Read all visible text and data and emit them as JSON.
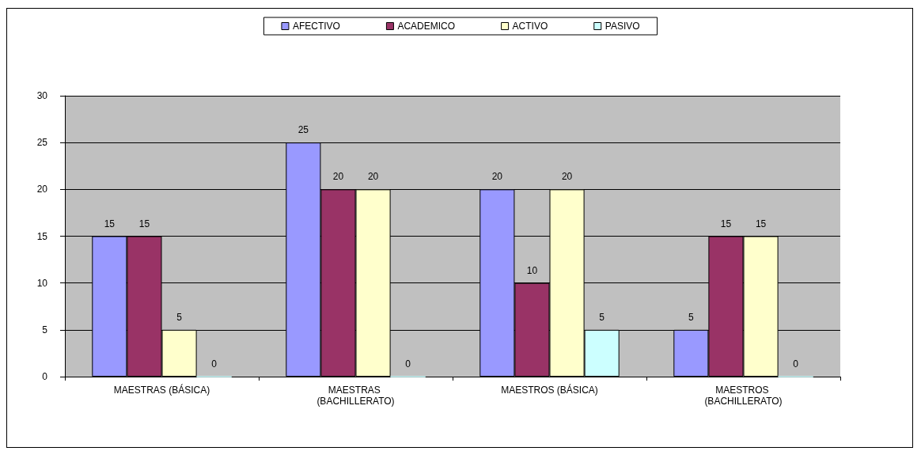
{
  "chart_data": {
    "type": "bar",
    "categories": [
      "MAESTRAS (BÁSICA)",
      "MAESTRAS (BACHILLERATO)",
      "MAESTROS (BÁSICA)",
      "MAESTROS (BACHILLERATO)"
    ],
    "series": [
      {
        "name": "AFECTIVO",
        "color": "#9999ff",
        "values": [
          15,
          25,
          20,
          5
        ]
      },
      {
        "name": "ACADEMICO",
        "color": "#993366",
        "values": [
          15,
          20,
          10,
          15
        ]
      },
      {
        "name": "ACTIVO",
        "color": "#ffffcc",
        "values": [
          5,
          20,
          20,
          15
        ]
      },
      {
        "name": "PASIVO",
        "color": "#ccffff",
        "values": [
          0,
          0,
          5,
          0
        ]
      }
    ],
    "ylim": [
      0,
      30
    ],
    "yticks": [
      0,
      5,
      10,
      15,
      20,
      25,
      30
    ],
    "grid": "y",
    "data_labels": true,
    "legend": "top"
  }
}
